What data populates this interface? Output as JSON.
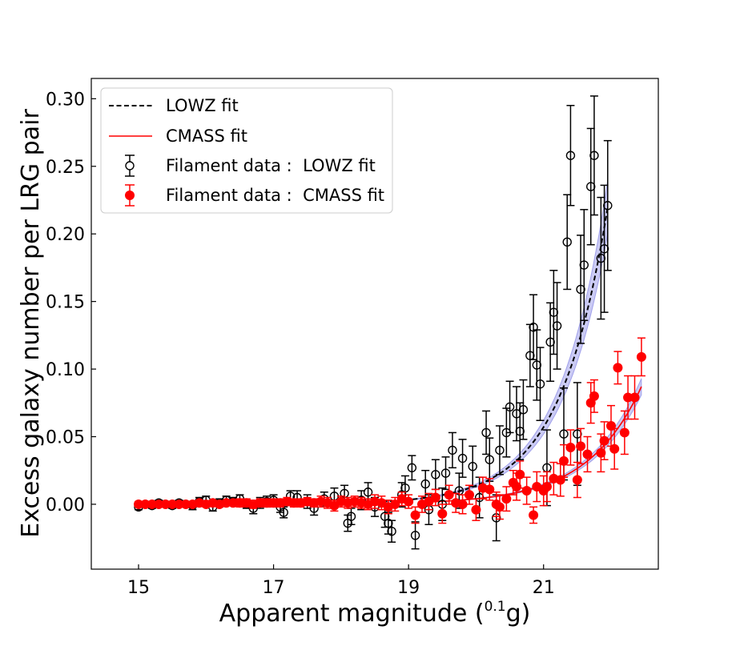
{
  "chart_data": {
    "type": "scatter",
    "xlabel_main": "Apparent magnitude (",
    "xlabel_sup": "0.1",
    "xlabel_tail": "g)",
    "ylabel": "Excess galaxy number per LRG pair",
    "xlim": [
      14.3,
      22.7
    ],
    "ylim": [
      -0.048,
      0.315
    ],
    "xticks": [
      15,
      17,
      19,
      21
    ],
    "xtick_labels": [
      "15",
      "17",
      "19",
      "21"
    ],
    "yticks": [
      0.0,
      0.05,
      0.1,
      0.15,
      0.2,
      0.25,
      0.3
    ],
    "ytick_labels": [
      "0.00",
      "0.05",
      "0.10",
      "0.15",
      "0.20",
      "0.25",
      "0.30"
    ],
    "grid": false,
    "legend_position": "top-left",
    "legend": [
      "LOWZ fit",
      "CMASS fit",
      "Filament data :  LOWZ fit",
      "Filament data :  CMASS fit"
    ],
    "colors": {
      "lowz": "#000000",
      "cmass": "#ff0000",
      "band": "#6b6be0"
    },
    "series": [
      {
        "name": "Filament data :  LOWZ fit",
        "marker": "open-circle",
        "points": [
          [
            15.0,
            -0.002,
            0.002
          ],
          [
            15.1,
            0.0,
            0.002
          ],
          [
            15.2,
            -0.001,
            0.002
          ],
          [
            15.3,
            0.001,
            0.002
          ],
          [
            15.4,
            0.0,
            0.002
          ],
          [
            15.5,
            -0.001,
            0.002
          ],
          [
            15.6,
            0.001,
            0.002
          ],
          [
            15.7,
            0.0,
            0.002
          ],
          [
            15.8,
            -0.001,
            0.003
          ],
          [
            15.9,
            0.002,
            0.003
          ],
          [
            16.0,
            0.003,
            0.003
          ],
          [
            16.1,
            -0.002,
            0.003
          ],
          [
            16.2,
            0.001,
            0.003
          ],
          [
            16.3,
            0.003,
            0.003
          ],
          [
            16.4,
            0.002,
            0.003
          ],
          [
            16.5,
            0.004,
            0.003
          ],
          [
            16.6,
            0.0,
            0.003
          ],
          [
            16.7,
            -0.003,
            0.004
          ],
          [
            16.8,
            0.001,
            0.004
          ],
          [
            16.9,
            0.002,
            0.004
          ],
          [
            17.0,
            0.003,
            0.004
          ],
          [
            17.1,
            -0.002,
            0.004
          ],
          [
            17.15,
            -0.006,
            0.004
          ],
          [
            17.25,
            0.006,
            0.004
          ],
          [
            17.35,
            0.005,
            0.005
          ],
          [
            17.5,
            0.002,
            0.005
          ],
          [
            17.6,
            -0.003,
            0.005
          ],
          [
            17.75,
            0.004,
            0.005
          ],
          [
            17.9,
            0.006,
            0.006
          ],
          [
            18.05,
            0.008,
            0.006
          ],
          [
            18.1,
            -0.014,
            0.006
          ],
          [
            18.15,
            -0.009,
            0.006
          ],
          [
            18.3,
            0.003,
            0.007
          ],
          [
            18.4,
            0.009,
            0.007
          ],
          [
            18.5,
            -0.002,
            0.007
          ],
          [
            18.65,
            -0.009,
            0.008
          ],
          [
            18.7,
            -0.014,
            0.008
          ],
          [
            18.75,
            -0.02,
            0.008
          ],
          [
            18.9,
            0.007,
            0.009
          ],
          [
            18.95,
            0.012,
            0.009
          ],
          [
            19.05,
            0.027,
            0.009
          ],
          [
            19.1,
            -0.023,
            0.01
          ],
          [
            19.25,
            0.015,
            0.01
          ],
          [
            19.3,
            -0.004,
            0.011
          ],
          [
            19.4,
            0.022,
            0.011
          ],
          [
            19.5,
            0.0,
            0.012
          ],
          [
            19.55,
            0.023,
            0.012
          ],
          [
            19.65,
            0.04,
            0.013
          ],
          [
            19.75,
            0.01,
            0.013
          ],
          [
            19.8,
            0.034,
            0.014
          ],
          [
            19.95,
            0.028,
            0.015
          ],
          [
            20.05,
            0.005,
            0.015
          ],
          [
            20.15,
            0.053,
            0.016
          ],
          [
            20.2,
            0.033,
            0.016
          ],
          [
            20.3,
            -0.01,
            0.017
          ],
          [
            20.35,
            0.04,
            0.018
          ],
          [
            20.45,
            0.053,
            0.018
          ],
          [
            20.5,
            0.072,
            0.019
          ],
          [
            20.6,
            0.067,
            0.02
          ],
          [
            20.65,
            0.054,
            0.021
          ],
          [
            20.7,
            0.07,
            0.022
          ],
          [
            20.8,
            0.11,
            0.023
          ],
          [
            20.85,
            0.131,
            0.024
          ],
          [
            20.9,
            0.103,
            0.026
          ],
          [
            20.95,
            0.089,
            0.027
          ],
          [
            21.05,
            0.027,
            0.028
          ],
          [
            21.1,
            0.12,
            0.029
          ],
          [
            21.15,
            0.142,
            0.031
          ],
          [
            21.2,
            0.132,
            0.032
          ],
          [
            21.3,
            0.052,
            0.034
          ],
          [
            21.35,
            0.194,
            0.035
          ],
          [
            21.4,
            0.258,
            0.037
          ],
          [
            21.5,
            0.052,
            0.038
          ],
          [
            21.55,
            0.159,
            0.04
          ],
          [
            21.6,
            0.177,
            0.041
          ],
          [
            21.7,
            0.235,
            0.043
          ],
          [
            21.75,
            0.258,
            0.044
          ],
          [
            21.85,
            0.182,
            0.045
          ],
          [
            21.9,
            0.189,
            0.047
          ],
          [
            21.95,
            0.221,
            0.048
          ]
        ]
      },
      {
        "name": "Filament data :  CMASS fit",
        "marker": "filled-circle",
        "points": [
          [
            15.0,
            0.0,
            0.002
          ],
          [
            15.1,
            0.0,
            0.002
          ],
          [
            15.2,
            0.0,
            0.002
          ],
          [
            15.3,
            0.0,
            0.002
          ],
          [
            15.4,
            0.0,
            0.002
          ],
          [
            15.5,
            0.0,
            0.002
          ],
          [
            15.6,
            0.0,
            0.002
          ],
          [
            15.7,
            0.0,
            0.002
          ],
          [
            15.8,
            0.0,
            0.002
          ],
          [
            15.9,
            0.001,
            0.002
          ],
          [
            16.0,
            0.0,
            0.002
          ],
          [
            16.1,
            0.001,
            0.002
          ],
          [
            16.2,
            0.0,
            0.002
          ],
          [
            16.3,
            0.001,
            0.002
          ],
          [
            16.4,
            0.001,
            0.002
          ],
          [
            16.5,
            0.001,
            0.003
          ],
          [
            16.6,
            0.001,
            0.003
          ],
          [
            16.7,
            0.0,
            0.003
          ],
          [
            16.8,
            0.001,
            0.003
          ],
          [
            16.9,
            0.001,
            0.003
          ],
          [
            17.0,
            0.001,
            0.003
          ],
          [
            17.1,
            0.001,
            0.003
          ],
          [
            17.2,
            0.002,
            0.003
          ],
          [
            17.3,
            0.001,
            0.003
          ],
          [
            17.4,
            0.001,
            0.003
          ],
          [
            17.5,
            0.002,
            0.003
          ],
          [
            17.6,
            0.001,
            0.003
          ],
          [
            17.7,
            0.002,
            0.004
          ],
          [
            17.8,
            0.001,
            0.004
          ],
          [
            17.9,
            -0.001,
            0.004
          ],
          [
            18.0,
            0.002,
            0.004
          ],
          [
            18.1,
            0.001,
            0.004
          ],
          [
            18.2,
            0.002,
            0.004
          ],
          [
            18.3,
            0.001,
            0.004
          ],
          [
            18.4,
            0.0,
            0.004
          ],
          [
            18.5,
            0.002,
            0.005
          ],
          [
            18.6,
            0.001,
            0.005
          ],
          [
            18.7,
            -0.002,
            0.005
          ],
          [
            18.8,
            0.0,
            0.005
          ],
          [
            18.9,
            0.004,
            0.005
          ],
          [
            19.0,
            0.002,
            0.005
          ],
          [
            19.1,
            -0.008,
            0.006
          ],
          [
            19.2,
            0.0,
            0.006
          ],
          [
            19.3,
            0.002,
            0.006
          ],
          [
            19.4,
            0.005,
            0.006
          ],
          [
            19.5,
            -0.007,
            0.007
          ],
          [
            19.6,
            0.007,
            0.007
          ],
          [
            19.7,
            0.001,
            0.007
          ],
          [
            19.8,
            0.0,
            0.007
          ],
          [
            19.9,
            0.007,
            0.007
          ],
          [
            20.0,
            -0.004,
            0.008
          ],
          [
            20.1,
            0.012,
            0.008
          ],
          [
            20.2,
            0.011,
            0.008
          ],
          [
            20.3,
            0.0,
            0.009
          ],
          [
            20.35,
            -0.002,
            0.009
          ],
          [
            20.45,
            0.004,
            0.009
          ],
          [
            20.55,
            0.016,
            0.009
          ],
          [
            20.6,
            0.013,
            0.01
          ],
          [
            20.65,
            0.022,
            0.01
          ],
          [
            20.75,
            0.01,
            0.01
          ],
          [
            20.85,
            -0.008,
            0.006
          ],
          [
            20.9,
            0.013,
            0.011
          ],
          [
            21.0,
            0.01,
            0.011
          ],
          [
            21.05,
            0.013,
            0.011
          ],
          [
            21.15,
            0.019,
            0.012
          ],
          [
            21.25,
            0.018,
            0.012
          ],
          [
            21.3,
            0.032,
            0.012
          ],
          [
            21.4,
            0.042,
            0.013
          ],
          [
            21.5,
            0.018,
            0.013
          ],
          [
            21.55,
            0.043,
            0.013
          ],
          [
            21.65,
            0.037,
            0.013
          ],
          [
            21.7,
            0.075,
            0.015
          ],
          [
            21.75,
            0.08,
            0.012
          ],
          [
            21.85,
            0.038,
            0.014
          ],
          [
            21.9,
            0.047,
            0.014
          ],
          [
            22.0,
            0.058,
            0.015
          ],
          [
            22.05,
            0.041,
            0.015
          ],
          [
            22.1,
            0.101,
            0.012
          ],
          [
            22.2,
            0.053,
            0.016
          ],
          [
            22.25,
            0.079,
            0.016
          ],
          [
            22.35,
            0.079,
            0.016
          ],
          [
            22.45,
            0.109,
            0.014
          ]
        ]
      }
    ],
    "fits": [
      {
        "name": "LOWZ fit",
        "style": "dashed",
        "x_start": 18.5,
        "x_end": 21.95,
        "a": 0.22,
        "k": 1.42,
        "x_ref": 21.95,
        "band_frac": 0.09
      },
      {
        "name": "CMASS fit",
        "style": "solid",
        "x_start": 19.2,
        "x_end": 22.45,
        "a": 0.087,
        "k": 1.25,
        "x_ref": 22.45,
        "band_frac": 0.07
      }
    ]
  }
}
